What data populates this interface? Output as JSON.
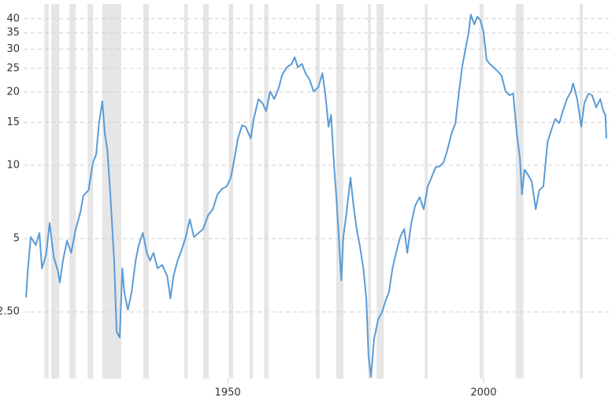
{
  "chart_data": {
    "type": "line",
    "yscale": "log",
    "grid": true,
    "color": "#5b9bd5",
    "shade_color": "#e6e6e6",
    "xlim": [
      1905.5,
      2025.1
    ],
    "xticks": [
      1950,
      2000
    ],
    "ylim": [
      1.33,
      46
    ],
    "yticks": [
      {
        "value": 2.5,
        "label": "2.50"
      },
      5,
      10,
      15,
      20,
      25,
      30,
      35,
      40
    ],
    "shaded_periods": [
      [
        1914.2,
        1915.0
      ],
      [
        1915.5,
        1917.1
      ],
      [
        1919.1,
        1920.3
      ],
      [
        1922.6,
        1923.7
      ],
      [
        1925.5,
        1929.2
      ],
      [
        1933.5,
        1934.6
      ],
      [
        1941.5,
        1942.2
      ],
      [
        1945.2,
        1946.3
      ],
      [
        1950.2,
        1951.1
      ],
      [
        1954.3,
        1954.9
      ],
      [
        1957.1,
        1958.0
      ],
      [
        1967.2,
        1968.0
      ],
      [
        1971.2,
        1972.6
      ],
      [
        1977.4,
        1978.0
      ],
      [
        1979.1,
        1980.5
      ],
      [
        1988.5,
        1989.1
      ],
      [
        1999.2,
        2000.0
      ],
      [
        2006.3,
        2007.8
      ],
      [
        2018.8,
        2019.4
      ]
    ],
    "x": [
      1910.6,
      1910.9,
      1911.5,
      1912.5,
      1913.2,
      1913.7,
      1914.5,
      1915.2,
      1916.0,
      1916.8,
      1917.2,
      1917.8,
      1918.6,
      1919.4,
      1920.3,
      1921.2,
      1921.8,
      1922.8,
      1923.7,
      1924.3,
      1924.8,
      1925.5,
      1926.0,
      1926.5,
      1927.1,
      1927.8,
      1928.3,
      1928.9,
      1929.4,
      1929.8,
      1930.5,
      1931.2,
      1932.0,
      1932.6,
      1933.4,
      1934.2,
      1934.8,
      1935.5,
      1936.3,
      1937.2,
      1938.2,
      1938.8,
      1939.4,
      1940.2,
      1940.9,
      1941.8,
      1942.6,
      1943.4,
      1944.3,
      1945.2,
      1946.2,
      1947.1,
      1948.0,
      1948.9,
      1949.8,
      1950.6,
      1951.2,
      1952.0,
      1952.8,
      1953.5,
      1954.5,
      1955.1,
      1956.0,
      1956.8,
      1957.5,
      1958.3,
      1959.1,
      1960.0,
      1960.6,
      1961.5,
      1962.5,
      1963.1,
      1963.7,
      1964.5,
      1965.2,
      1966.0,
      1966.8,
      1967.7,
      1968.5,
      1969.1,
      1969.7,
      1970.2,
      1970.8,
      1971.2,
      1971.7,
      1972.2,
      1972.6,
      1973.2,
      1974.0,
      1974.6,
      1975.2,
      1975.8,
      1976.5,
      1977.1,
      1977.5,
      1978.0,
      1978.6,
      1979.4,
      1980.2,
      1980.9,
      1981.5,
      1982.2,
      1982.9,
      1983.7,
      1984.5,
      1985.1,
      1985.8,
      1986.6,
      1987.5,
      1988.3,
      1989.1,
      1989.8,
      1990.6,
      1991.4,
      1992.2,
      1992.9,
      1993.7,
      1994.5,
      1995.2,
      1995.8,
      1996.5,
      1997.1,
      1997.5,
      1998.2,
      1998.8,
      1999.4,
      2000.0,
      2000.6,
      2001.2,
      2002.0,
      2002.8,
      2003.5,
      2004.3,
      2005.1,
      2005.8,
      2006.5,
      2007.1,
      2007.5,
      2008.0,
      2008.6,
      2009.4,
      2010.2,
      2010.9,
      2011.7,
      2012.5,
      2013.2,
      2014.0,
      2014.8,
      2015.5,
      2016.3,
      2017.1,
      2017.5,
      2018.3,
      2019.1,
      2019.7,
      2020.5,
      2021.2,
      2022.0,
      2022.8,
      2023.4,
      2023.8,
      2024.0
    ],
    "values": [
      2.86,
      3.63,
      5.07,
      4.7,
      5.27,
      3.77,
      4.3,
      5.8,
      4.2,
      3.7,
      3.3,
      4.06,
      4.9,
      4.37,
      5.47,
      6.4,
      7.5,
      7.9,
      10.3,
      11.1,
      14.6,
      18.3,
      13.4,
      11.5,
      7.4,
      4.06,
      2.07,
      1.96,
      3.77,
      3.0,
      2.55,
      3.0,
      4.06,
      4.7,
      5.27,
      4.37,
      4.06,
      4.37,
      3.77,
      3.9,
      3.5,
      2.84,
      3.5,
      4.06,
      4.43,
      5.07,
      6.0,
      5.07,
      5.27,
      5.47,
      6.25,
      6.6,
      7.6,
      8.0,
      8.2,
      8.9,
      10.3,
      12.9,
      14.6,
      14.4,
      12.9,
      15.5,
      18.7,
      18.0,
      16.7,
      20.1,
      18.7,
      20.9,
      23.4,
      25.2,
      26.1,
      27.8,
      25.2,
      26.1,
      23.9,
      22.5,
      20.1,
      20.9,
      23.9,
      19.4,
      14.4,
      16.1,
      9.9,
      7.6,
      5.07,
      3.37,
      5.07,
      6.35,
      8.9,
      6.8,
      5.47,
      4.7,
      3.77,
      2.8,
      1.66,
      1.35,
      1.93,
      2.33,
      2.5,
      2.8,
      3.0,
      3.77,
      4.37,
      5.07,
      5.47,
      4.37,
      5.67,
      6.8,
      7.4,
      6.6,
      8.2,
      8.9,
      9.8,
      9.9,
      10.3,
      11.5,
      13.4,
      14.9,
      20.1,
      25.2,
      30.3,
      35.2,
      41.6,
      37.9,
      40.8,
      39.4,
      35.2,
      27.1,
      26.1,
      25.2,
      24.3,
      23.4,
      20.1,
      19.4,
      19.7,
      13.4,
      10.7,
      7.6,
      9.6,
      9.2,
      8.6,
      6.6,
      7.9,
      8.2,
      12.4,
      13.9,
      15.5,
      14.9,
      16.7,
      18.7,
      20.1,
      21.7,
      18.7,
      14.4,
      18.0,
      19.7,
      19.4,
      17.3,
      18.7,
      16.7,
      16.1,
      12.9
    ]
  }
}
